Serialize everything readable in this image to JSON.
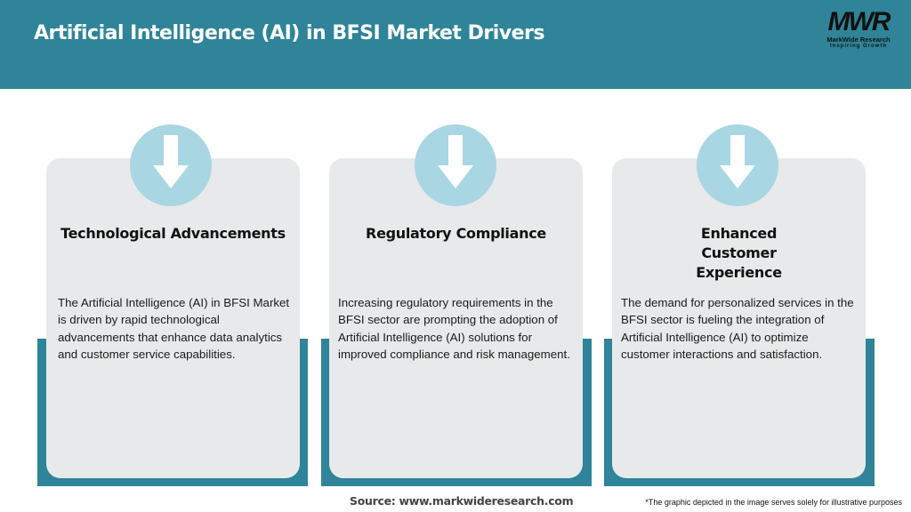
{
  "header": {
    "title": "Artificial Intelligence (AI) in BFSI Market Drivers",
    "logo": {
      "mark": "MWR",
      "name": "MarkWide Research",
      "tagline": "Inspiring Growth"
    }
  },
  "cards": [
    {
      "icon": "arrow-down-icon",
      "title": "Technological Advancements",
      "text": "The Artificial Intelligence (AI) in BFSI Market is driven by rapid technological advancements that enhance data analytics and customer service capabilities."
    },
    {
      "icon": "arrow-down-icon",
      "title": "Regulatory Compliance",
      "text": "Increasing regulatory requirements in the BFSI sector are prompting the adoption of Artificial Intelligence (AI) solutions for improved compliance and risk management."
    },
    {
      "icon": "arrow-down-icon",
      "title": "Enhanced Customer Experience",
      "text": "The demand for personalized services in the BFSI sector is fueling the integration of Artificial Intelligence (AI) to optimize customer interactions and satisfaction."
    }
  ],
  "footer": {
    "source": "Source: www.markwideresearch.com",
    "note": "*The graphic depicted in the image serves solely for illustrative purposes"
  },
  "colors": {
    "header": "#2f8499",
    "card": "#e8e9ea",
    "circle": "#a9d6e3"
  }
}
